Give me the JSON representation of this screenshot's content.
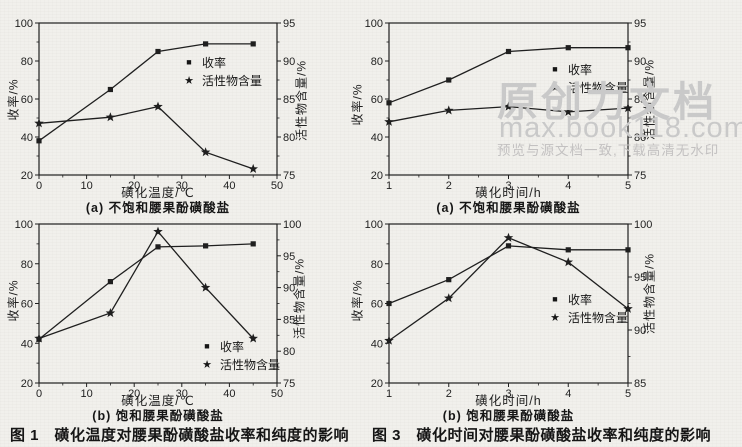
{
  "page": {
    "bg": "#f1f0ec",
    "ink": "#1f1f1f",
    "watermark": {
      "color": "#c9c9c9",
      "line1": "原创力文档",
      "line2": "max.book118.com",
      "line3": "预览与源文档一致,下载高清无水印"
    },
    "captions": {
      "fig1": "图 1　磺化温度对腰果酚磺酸盐收率和纯度的影响",
      "fig3": "图 3　磺化时间对腰果酚磺酸盐收率和纯度的影响"
    }
  },
  "chart_data": [
    {
      "id": "fig1a",
      "type": "line",
      "panel_label": "(a) 不饱和腰果酚磺酸盐",
      "xlabel": "磺化温度/℃",
      "ylabel_left": "收率/%",
      "ylabel_right": "活性物含量/%",
      "xlim": [
        0,
        50
      ],
      "xticks": [
        0,
        10,
        20,
        30,
        40,
        50
      ],
      "ylim_left": [
        20,
        100
      ],
      "yticks_left": [
        20,
        40,
        60,
        80,
        100
      ],
      "ylim_right": [
        75,
        95
      ],
      "yticks_right": [
        75,
        80,
        85,
        90,
        95
      ],
      "legend_position": "center-right-inside",
      "grid": false,
      "series": [
        {
          "name": "收率",
          "marker": "square",
          "axis": "left",
          "x": [
            0,
            15,
            25,
            35,
            45
          ],
          "y": [
            38,
            65,
            85,
            89,
            89
          ]
        },
        {
          "name": "活性物含量",
          "marker": "star",
          "axis": "right",
          "x": [
            0,
            15,
            25,
            35,
            45
          ],
          "y": [
            81.8,
            82.6,
            84,
            78,
            75.8
          ]
        }
      ]
    },
    {
      "id": "fig3a",
      "type": "line",
      "panel_label": "(a) 不饱和腰果酚磺酸盐",
      "xlabel": "磺化时间/h",
      "ylabel_left": "收率/%",
      "ylabel_right": "活性物含量/%",
      "xlim": [
        1,
        5
      ],
      "xticks": [
        1,
        2,
        3,
        4,
        5
      ],
      "ylim_left": [
        20,
        100
      ],
      "yticks_left": [
        20,
        40,
        60,
        80,
        100
      ],
      "ylim_right": [
        75,
        95
      ],
      "yticks_right": [
        75,
        80,
        85,
        90,
        95
      ],
      "legend_position": "center-right-inside",
      "grid": false,
      "series": [
        {
          "name": "收率",
          "marker": "square",
          "axis": "left",
          "x": [
            1,
            2,
            3,
            4,
            5
          ],
          "y": [
            58,
            70,
            85,
            87,
            87
          ]
        },
        {
          "name": "活性物含量",
          "marker": "star",
          "axis": "right",
          "x": [
            1,
            2,
            3,
            4,
            5
          ],
          "y": [
            82,
            83.5,
            84,
            83.3,
            83.8
          ]
        }
      ]
    },
    {
      "id": "fig1b",
      "type": "line",
      "panel_label": "(b) 饱和腰果酚磺酸盐",
      "xlabel": "磺化温度/℃",
      "ylabel_left": "收率/%",
      "ylabel_right": "活性物含量/%",
      "xlim": [
        0,
        50
      ],
      "xticks": [
        0,
        10,
        20,
        30,
        40,
        50
      ],
      "ylim_left": [
        20,
        100
      ],
      "yticks_left": [
        20,
        40,
        60,
        80,
        100
      ],
      "ylim_right": [
        75,
        100
      ],
      "yticks_right": [
        75,
        80,
        85,
        90,
        95,
        100
      ],
      "legend_position": "lower-right-inside",
      "grid": false,
      "series": [
        {
          "name": "收率",
          "marker": "square",
          "axis": "left",
          "x": [
            0,
            15,
            25,
            35,
            45
          ],
          "y": [
            42,
            71,
            88.5,
            89,
            90
          ]
        },
        {
          "name": "活性物含量",
          "marker": "star",
          "axis": "right",
          "x": [
            0,
            15,
            25,
            35,
            45
          ],
          "y": [
            82,
            86,
            98.8,
            90,
            82
          ]
        }
      ]
    },
    {
      "id": "fig3b",
      "type": "line",
      "panel_label": "(b) 饱和腰果酚磺酸盐",
      "xlabel": "磺化时间/h",
      "ylabel_left": "收率/%",
      "ylabel_right": "活性物含量/%",
      "xlim": [
        1,
        5
      ],
      "xticks": [
        1,
        2,
        3,
        4,
        5
      ],
      "ylim_left": [
        20,
        100
      ],
      "yticks_left": [
        20,
        40,
        60,
        80,
        100
      ],
      "ylim_right": [
        85,
        100
      ],
      "yticks_right": [
        85,
        90,
        95,
        100
      ],
      "legend_position": "center-right-inside",
      "grid": false,
      "series": [
        {
          "name": "收率",
          "marker": "square",
          "axis": "left",
          "x": [
            1,
            2,
            3,
            4,
            5
          ],
          "y": [
            60,
            72,
            89,
            87,
            87
          ]
        },
        {
          "name": "活性物含量",
          "marker": "star",
          "axis": "right",
          "x": [
            1,
            2,
            3,
            4,
            5
          ],
          "y": [
            89,
            93,
            98.7,
            96.4,
            92
          ]
        }
      ]
    }
  ]
}
